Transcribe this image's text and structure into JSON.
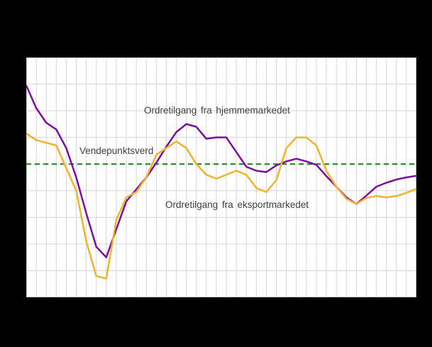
{
  "chart_data": {
    "type": "line",
    "title": "",
    "x_count": 40,
    "x_tick_labels_visible": false,
    "y_tick_labels_visible": false,
    "ylim": [
      -5,
      4
    ],
    "y_gridline_step": 1,
    "y_unit": "gridline intervals relative to the turning-point reference line (no numeric axis labels visible in image)",
    "grid": true,
    "plot_background": "#ffffff",
    "outer_background": "#000000",
    "gridline_color": "#d6d6d6",
    "frame_color": "#c9c9c9",
    "label_color": "#3f3f3f",
    "series": [
      {
        "name": "Ordretilgang  fra hjemmemarkedet",
        "color": "#7d0f9d",
        "values": [
          2.95,
          2.1,
          1.55,
          1.3,
          0.6,
          -0.5,
          -1.85,
          -3.1,
          -3.5,
          -2.45,
          -1.4,
          -0.95,
          -0.5,
          0.05,
          0.65,
          1.2,
          1.5,
          1.4,
          0.95,
          1.0,
          1.0,
          0.45,
          -0.1,
          -0.25,
          -0.3,
          -0.05,
          0.1,
          0.2,
          0.1,
          -0.03,
          -0.45,
          -0.85,
          -1.25,
          -1.5,
          -1.18,
          -0.85,
          -0.7,
          -0.58,
          -0.5,
          -0.44
        ]
      },
      {
        "name": "Ordretilgang  fra eksportmarkedet",
        "color": "#f0b32e",
        "values": [
          1.15,
          0.9,
          0.8,
          0.7,
          -0.15,
          -1.0,
          -2.9,
          -4.2,
          -4.3,
          -2.1,
          -1.25,
          -1.05,
          -0.5,
          0.35,
          0.6,
          0.85,
          0.6,
          0.0,
          -0.4,
          -0.55,
          -0.4,
          -0.25,
          -0.4,
          -0.9,
          -1.05,
          -0.6,
          0.6,
          1.0,
          1.0,
          0.7,
          -0.25,
          -0.85,
          -1.3,
          -1.5,
          -1.27,
          -1.2,
          -1.25,
          -1.2,
          -1.08,
          -0.93
        ]
      }
    ],
    "reference_line": {
      "label": "Vendepunktsverd",
      "value": 0,
      "color": "#1e7a1e",
      "style": "dashed"
    },
    "legend_position": "in-plot text annotations"
  }
}
